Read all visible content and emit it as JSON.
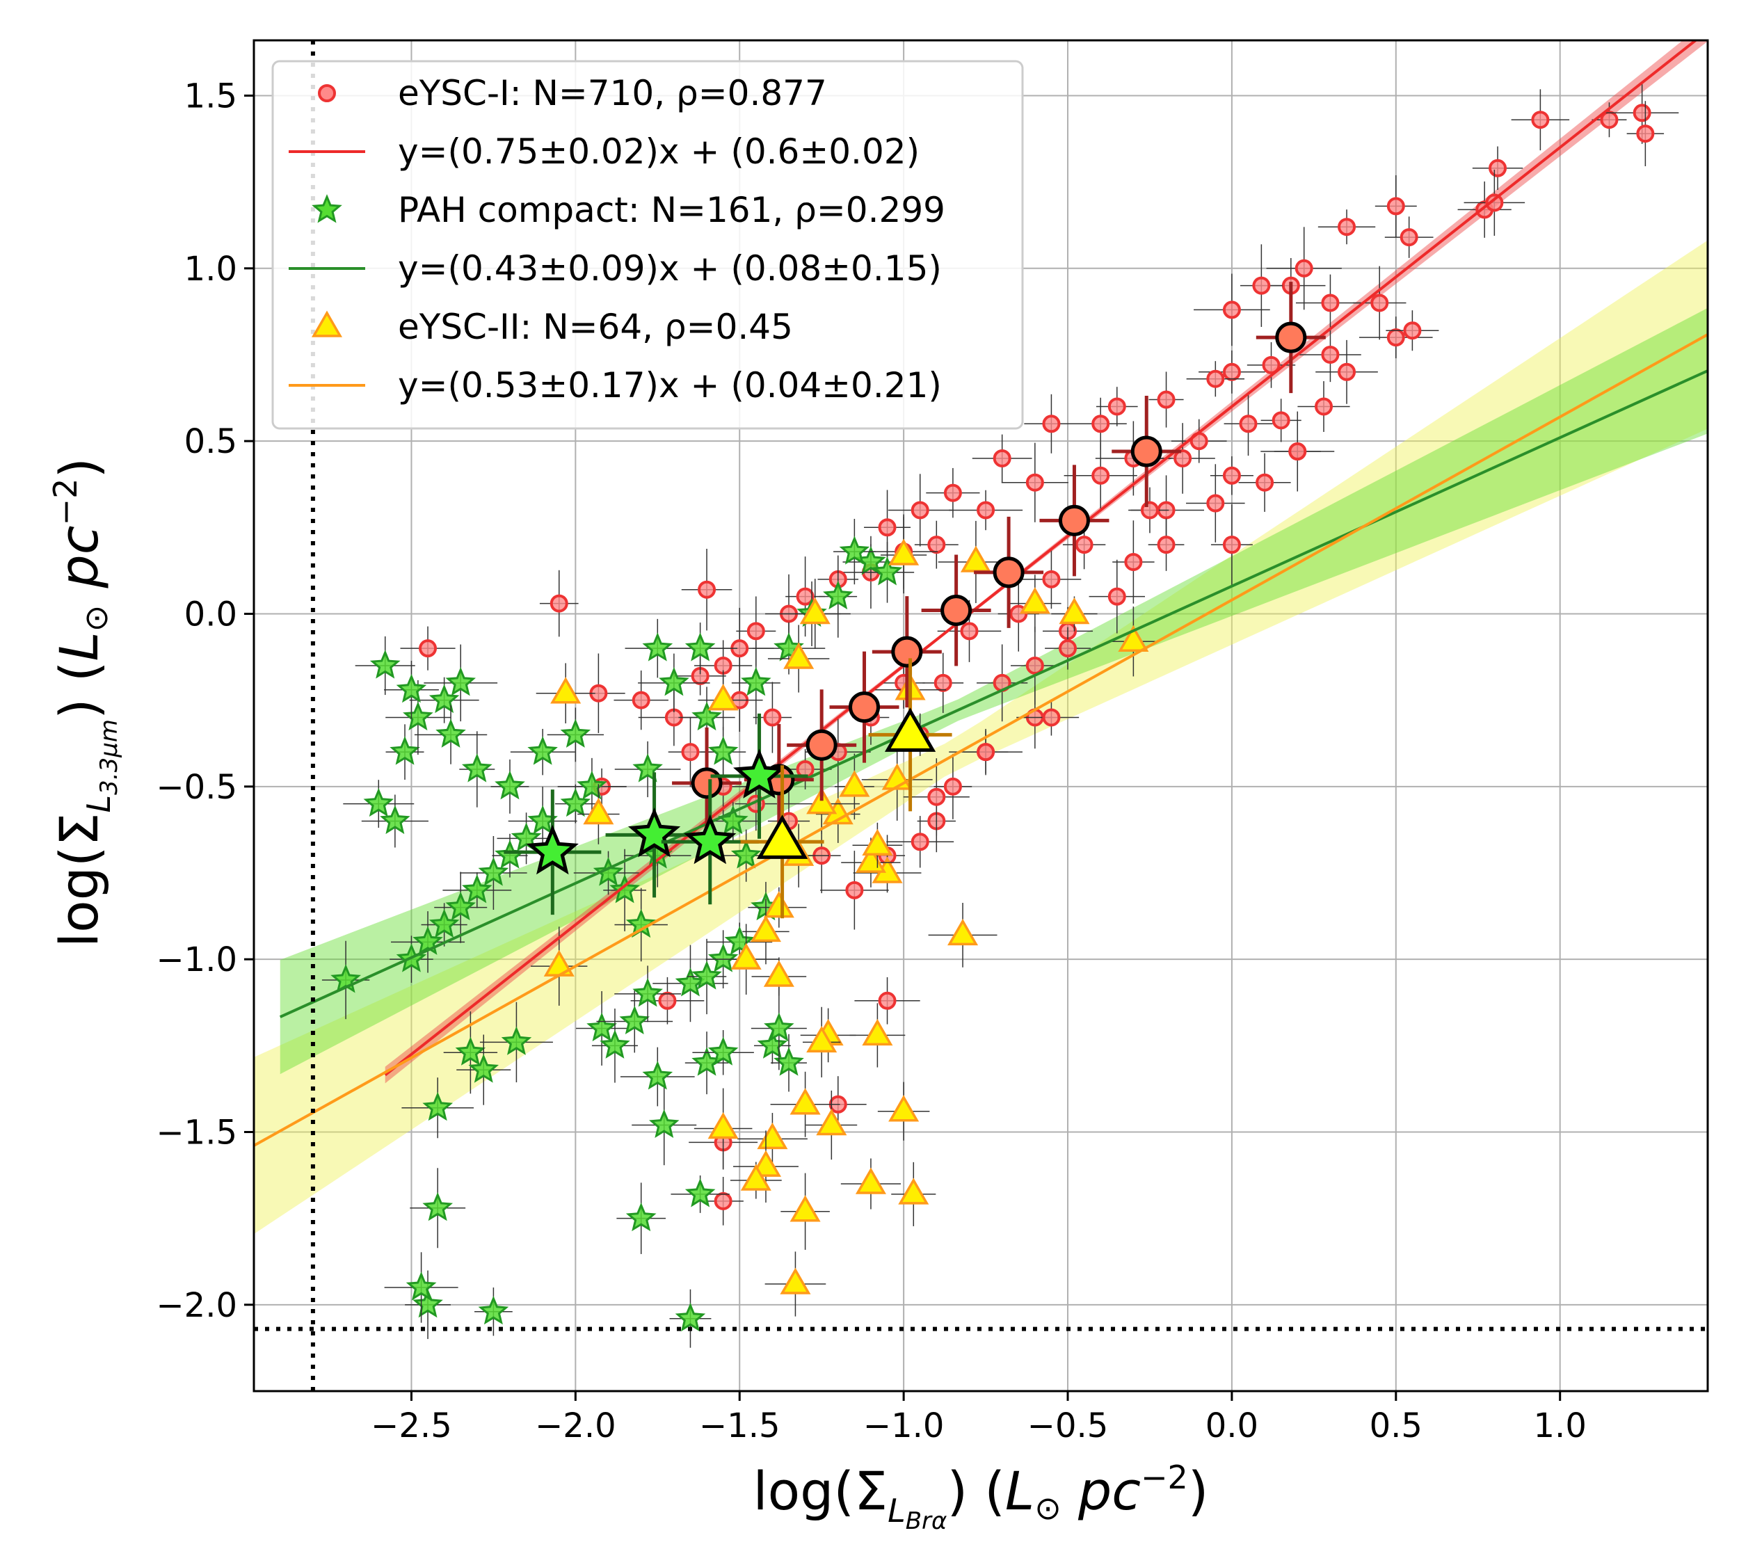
{
  "chart_data": {
    "type": "scatter",
    "title": "",
    "xlabel": "log(Σ_{L_{Brα}}) (L⊙ pc⁻²)",
    "ylabel": "log(Σ_{L_{3.3μm}}) (L⊙ pc⁻²)",
    "xlim": [
      -2.98,
      1.45
    ],
    "ylim": [
      -2.25,
      1.66
    ],
    "x_ticks": [
      -2.5,
      -2.0,
      -1.5,
      -1.0,
      -0.5,
      0.0,
      0.5,
      1.0
    ],
    "y_ticks": [
      -2.0,
      -1.5,
      -1.0,
      -0.5,
      0.0,
      0.5,
      1.0,
      1.5
    ],
    "x_tick_labels": [
      "−2.5",
      "−2.0",
      "−1.5",
      "−1.0",
      "−0.5",
      "0.0",
      "0.5",
      "1.0"
    ],
    "y_tick_labels": [
      "−2.0",
      "−1.5",
      "−1.0",
      "−0.5",
      "0.0",
      "0.5",
      "1.0",
      "1.5"
    ],
    "grid": true,
    "legend_position": "top-left",
    "colors": {
      "red": "#ee2a2a",
      "green": "#2aa32a",
      "orange": "#ff9a1a",
      "yellow": "#ffff00",
      "lime": "#99ee33"
    },
    "series": [
      {
        "name": "eYSC-I: N=710, ρ=0.877",
        "marker": "circle",
        "color": "#ff5a5a",
        "points": [
          [
            1.15,
            1.43
          ],
          [
            1.25,
            1.45
          ],
          [
            1.26,
            1.39
          ],
          [
            0.94,
            1.43
          ],
          [
            0.81,
            1.29
          ],
          [
            0.77,
            1.17
          ],
          [
            0.8,
            1.19
          ],
          [
            0.5,
            1.18
          ],
          [
            0.54,
            1.09
          ],
          [
            0.35,
            1.12
          ],
          [
            0.22,
            1.0
          ],
          [
            0.18,
            0.95
          ],
          [
            0.09,
            0.95
          ],
          [
            0.0,
            0.88
          ],
          [
            0.3,
            0.9
          ],
          [
            0.45,
            0.9
          ],
          [
            0.5,
            0.8
          ],
          [
            0.55,
            0.82
          ],
          [
            0.3,
            0.75
          ],
          [
            0.12,
            0.72
          ],
          [
            0.0,
            0.7
          ],
          [
            -0.05,
            0.68
          ],
          [
            0.35,
            0.7
          ],
          [
            0.28,
            0.6
          ],
          [
            0.15,
            0.56
          ],
          [
            0.05,
            0.55
          ],
          [
            -0.1,
            0.5
          ],
          [
            -0.2,
            0.62
          ],
          [
            -0.35,
            0.6
          ],
          [
            -0.4,
            0.55
          ],
          [
            -0.3,
            0.45
          ],
          [
            -0.15,
            0.45
          ],
          [
            0.2,
            0.47
          ],
          [
            0.1,
            0.38
          ],
          [
            0.0,
            0.4
          ],
          [
            -0.05,
            0.32
          ],
          [
            -0.2,
            0.3
          ],
          [
            -0.4,
            0.4
          ],
          [
            -0.55,
            0.55
          ],
          [
            -0.6,
            0.38
          ],
          [
            -0.7,
            0.45
          ],
          [
            -0.75,
            0.3
          ],
          [
            -0.85,
            0.35
          ],
          [
            -0.9,
            0.2
          ],
          [
            -0.95,
            0.3
          ],
          [
            -1.0,
            0.18
          ],
          [
            -1.05,
            0.25
          ],
          [
            -1.1,
            0.12
          ],
          [
            -1.2,
            0.1
          ],
          [
            -1.3,
            0.05
          ],
          [
            -1.35,
            0.0
          ],
          [
            -1.45,
            -0.05
          ],
          [
            -1.5,
            -0.1
          ],
          [
            -1.55,
            -0.15
          ],
          [
            -1.62,
            -0.18
          ],
          [
            -1.7,
            -0.3
          ],
          [
            -1.8,
            -0.25
          ],
          [
            -1.65,
            -0.4
          ],
          [
            -1.55,
            -0.5
          ],
          [
            -1.45,
            -0.55
          ],
          [
            -1.35,
            -0.6
          ],
          [
            -1.25,
            -0.7
          ],
          [
            -1.15,
            -0.8
          ],
          [
            -1.05,
            -0.7
          ],
          [
            -0.9,
            -0.6
          ],
          [
            -0.85,
            -0.5
          ],
          [
            -0.95,
            -0.35
          ],
          [
            -0.75,
            -0.4
          ],
          [
            -0.7,
            -0.2
          ],
          [
            -0.6,
            -0.15
          ],
          [
            -0.5,
            -0.05
          ],
          [
            -0.35,
            0.05
          ],
          [
            -0.3,
            0.15
          ],
          [
            -0.2,
            0.2
          ],
          [
            -0.45,
            0.2
          ],
          [
            -0.55,
            0.1
          ],
          [
            -0.65,
            0.0
          ],
          [
            -0.8,
            -0.05
          ],
          [
            -1.0,
            -0.2
          ],
          [
            -1.1,
            -0.3
          ],
          [
            -1.2,
            -0.4
          ],
          [
            -1.3,
            -0.45
          ],
          [
            -1.4,
            -0.3
          ],
          [
            -1.5,
            -0.25
          ],
          [
            -2.05,
            0.03
          ],
          [
            -1.6,
            0.07
          ],
          [
            -2.45,
            -0.1
          ],
          [
            -1.92,
            -0.5
          ],
          [
            -1.93,
            -0.23
          ],
          [
            -1.72,
            -1.12
          ],
          [
            -1.55,
            -1.53
          ],
          [
            -1.55,
            -1.7
          ],
          [
            -1.2,
            -1.42
          ],
          [
            -1.05,
            -1.12
          ],
          [
            -0.95,
            -0.66
          ],
          [
            -0.9,
            -0.53
          ],
          [
            -0.75,
            -0.4
          ],
          [
            -0.88,
            -0.2
          ],
          [
            -0.6,
            -0.3
          ],
          [
            -0.55,
            -0.3
          ],
          [
            -0.5,
            -0.1
          ],
          [
            0.2,
            0.47
          ],
          [
            -0.25,
            0.3
          ],
          [
            0.0,
            0.2
          ]
        ]
      },
      {
        "name": "PAH compact: N=161, ρ=0.299",
        "marker": "star",
        "color": "#33cc33",
        "points": [
          [
            -2.45,
            -2.0
          ],
          [
            -2.47,
            -1.95
          ],
          [
            -2.25,
            -2.02
          ],
          [
            -1.65,
            -2.04
          ],
          [
            -2.42,
            -1.72
          ],
          [
            -2.42,
            -1.43
          ],
          [
            -1.8,
            -1.75
          ],
          [
            -1.62,
            -1.68
          ],
          [
            -1.73,
            -1.48
          ],
          [
            -1.75,
            -1.34
          ],
          [
            -1.6,
            -1.3
          ],
          [
            -1.55,
            -1.27
          ],
          [
            -1.4,
            -1.25
          ],
          [
            -1.35,
            -1.3
          ],
          [
            -1.38,
            -1.2
          ],
          [
            -2.32,
            -1.27
          ],
          [
            -2.28,
            -1.32
          ],
          [
            -2.18,
            -1.24
          ],
          [
            -1.92,
            -1.2
          ],
          [
            -1.82,
            -1.18
          ],
          [
            -1.88,
            -1.25
          ],
          [
            -1.78,
            -1.1
          ],
          [
            -1.65,
            -1.07
          ],
          [
            -1.6,
            -1.05
          ],
          [
            -1.55,
            -1.0
          ],
          [
            -1.5,
            -0.95
          ],
          [
            -2.7,
            -1.06
          ],
          [
            -2.5,
            -1.0
          ],
          [
            -2.45,
            -0.95
          ],
          [
            -2.4,
            -0.9
          ],
          [
            -2.35,
            -0.85
          ],
          [
            -2.3,
            -0.8
          ],
          [
            -2.25,
            -0.75
          ],
          [
            -2.2,
            -0.7
          ],
          [
            -2.15,
            -0.65
          ],
          [
            -2.1,
            -0.6
          ],
          [
            -2.0,
            -0.55
          ],
          [
            -1.95,
            -0.5
          ],
          [
            -1.9,
            -0.75
          ],
          [
            -1.85,
            -0.8
          ],
          [
            -1.8,
            -0.9
          ],
          [
            -1.75,
            -0.7
          ],
          [
            -2.55,
            -0.6
          ],
          [
            -2.6,
            -0.55
          ],
          [
            -2.52,
            -0.4
          ],
          [
            -2.48,
            -0.3
          ],
          [
            -2.4,
            -0.25
          ],
          [
            -2.35,
            -0.2
          ],
          [
            -2.58,
            -0.15
          ],
          [
            -2.5,
            -0.22
          ],
          [
            -2.38,
            -0.35
          ],
          [
            -2.3,
            -0.45
          ],
          [
            -2.2,
            -0.5
          ],
          [
            -2.1,
            -0.4
          ],
          [
            -2.0,
            -0.35
          ],
          [
            -1.7,
            -0.2
          ],
          [
            -1.62,
            -0.1
          ],
          [
            -1.6,
            -0.3
          ],
          [
            -1.55,
            -0.4
          ],
          [
            -1.45,
            -0.2
          ],
          [
            -1.35,
            -0.1
          ],
          [
            -1.28,
            0.0
          ],
          [
            -1.2,
            0.05
          ],
          [
            -1.1,
            0.15
          ],
          [
            -1.15,
            0.18
          ],
          [
            -1.05,
            0.12
          ],
          [
            -1.75,
            -0.1
          ],
          [
            -1.78,
            -0.45
          ],
          [
            -1.52,
            -0.6
          ],
          [
            -1.48,
            -0.7
          ],
          [
            -1.42,
            -0.85
          ]
        ]
      },
      {
        "name": "eYSC-II: N=64, ρ=0.45",
        "marker": "triangle",
        "color": "#ffdd00",
        "points": [
          [
            -2.03,
            -0.23
          ],
          [
            -1.93,
            -0.58
          ],
          [
            -2.05,
            -1.02
          ],
          [
            -1.55,
            -0.25
          ],
          [
            -1.27,
            0.0
          ],
          [
            -1.32,
            -0.13
          ],
          [
            -1.0,
            0.17
          ],
          [
            -0.98,
            -0.22
          ],
          [
            -0.78,
            0.15
          ],
          [
            -0.6,
            0.03
          ],
          [
            -0.48,
            0.0
          ],
          [
            -0.3,
            -0.08
          ],
          [
            -0.82,
            -0.93
          ],
          [
            -1.05,
            -0.75
          ],
          [
            -1.1,
            -0.72
          ],
          [
            -1.2,
            -0.58
          ],
          [
            -1.25,
            -0.55
          ],
          [
            -1.15,
            -0.5
          ],
          [
            -1.02,
            -0.48
          ],
          [
            -1.08,
            -0.67
          ],
          [
            -1.32,
            -0.7
          ],
          [
            -1.38,
            -0.85
          ],
          [
            -1.42,
            -0.92
          ],
          [
            -1.48,
            -1.0
          ],
          [
            -1.38,
            -1.05
          ],
          [
            -1.23,
            -1.22
          ],
          [
            -1.25,
            -1.24
          ],
          [
            -1.08,
            -1.22
          ],
          [
            -1.3,
            -1.42
          ],
          [
            -1.22,
            -1.48
          ],
          [
            -1.4,
            -1.52
          ],
          [
            -1.55,
            -1.49
          ],
          [
            -1.42,
            -1.6
          ],
          [
            -1.45,
            -1.64
          ],
          [
            -1.3,
            -1.73
          ],
          [
            -1.1,
            -1.65
          ],
          [
            -0.97,
            -1.68
          ],
          [
            -1.0,
            -1.44
          ],
          [
            -1.33,
            -1.94
          ]
        ]
      }
    ],
    "binned": {
      "eYSC-I": [
        [
          -1.6,
          -0.49
        ],
        [
          -1.38,
          -0.48
        ],
        [
          -1.25,
          -0.38
        ],
        [
          -1.12,
          -0.27
        ],
        [
          -0.99,
          -0.11
        ],
        [
          -0.84,
          0.01
        ],
        [
          -0.68,
          0.12
        ],
        [
          -0.48,
          0.27
        ],
        [
          -0.26,
          0.47
        ],
        [
          0.18,
          0.8
        ]
      ],
      "PAH compact": [
        [
          -2.07,
          -0.69
        ],
        [
          -1.76,
          -0.64
        ],
        [
          -1.59,
          -0.66
        ],
        [
          -1.44,
          -0.47
        ]
      ],
      "eYSC-II": [
        [
          -1.37,
          -0.66
        ],
        [
          -0.98,
          -0.35
        ]
      ]
    },
    "fits": [
      {
        "name": "y=(0.75±0.02)x + (0.6±0.02)",
        "slope": 0.75,
        "intercept": 0.6,
        "x_range": [
          -2.58,
          1.45
        ],
        "color": "#ee2a2a",
        "band_color": "#ee4444",
        "band_scale": 0.02
      },
      {
        "name": "y=(0.43±0.09)x + (0.08±0.15)",
        "slope": 0.43,
        "intercept": 0.08,
        "x_range": [
          -2.9,
          1.45
        ],
        "color": "#2a8f2a",
        "band_color": "#66dd33",
        "band_scale": 0.12
      },
      {
        "name": "y=(0.53±0.17)x + (0.04±0.21)",
        "slope": 0.53,
        "intercept": 0.04,
        "x_range": [
          -2.98,
          1.45
        ],
        "color": "#ff9a1a",
        "band_color": "#f0f25a",
        "band_scale": 0.18
      }
    ],
    "reference_lines": {
      "vertical_x": -2.8,
      "horizontal_y": -2.07
    }
  }
}
